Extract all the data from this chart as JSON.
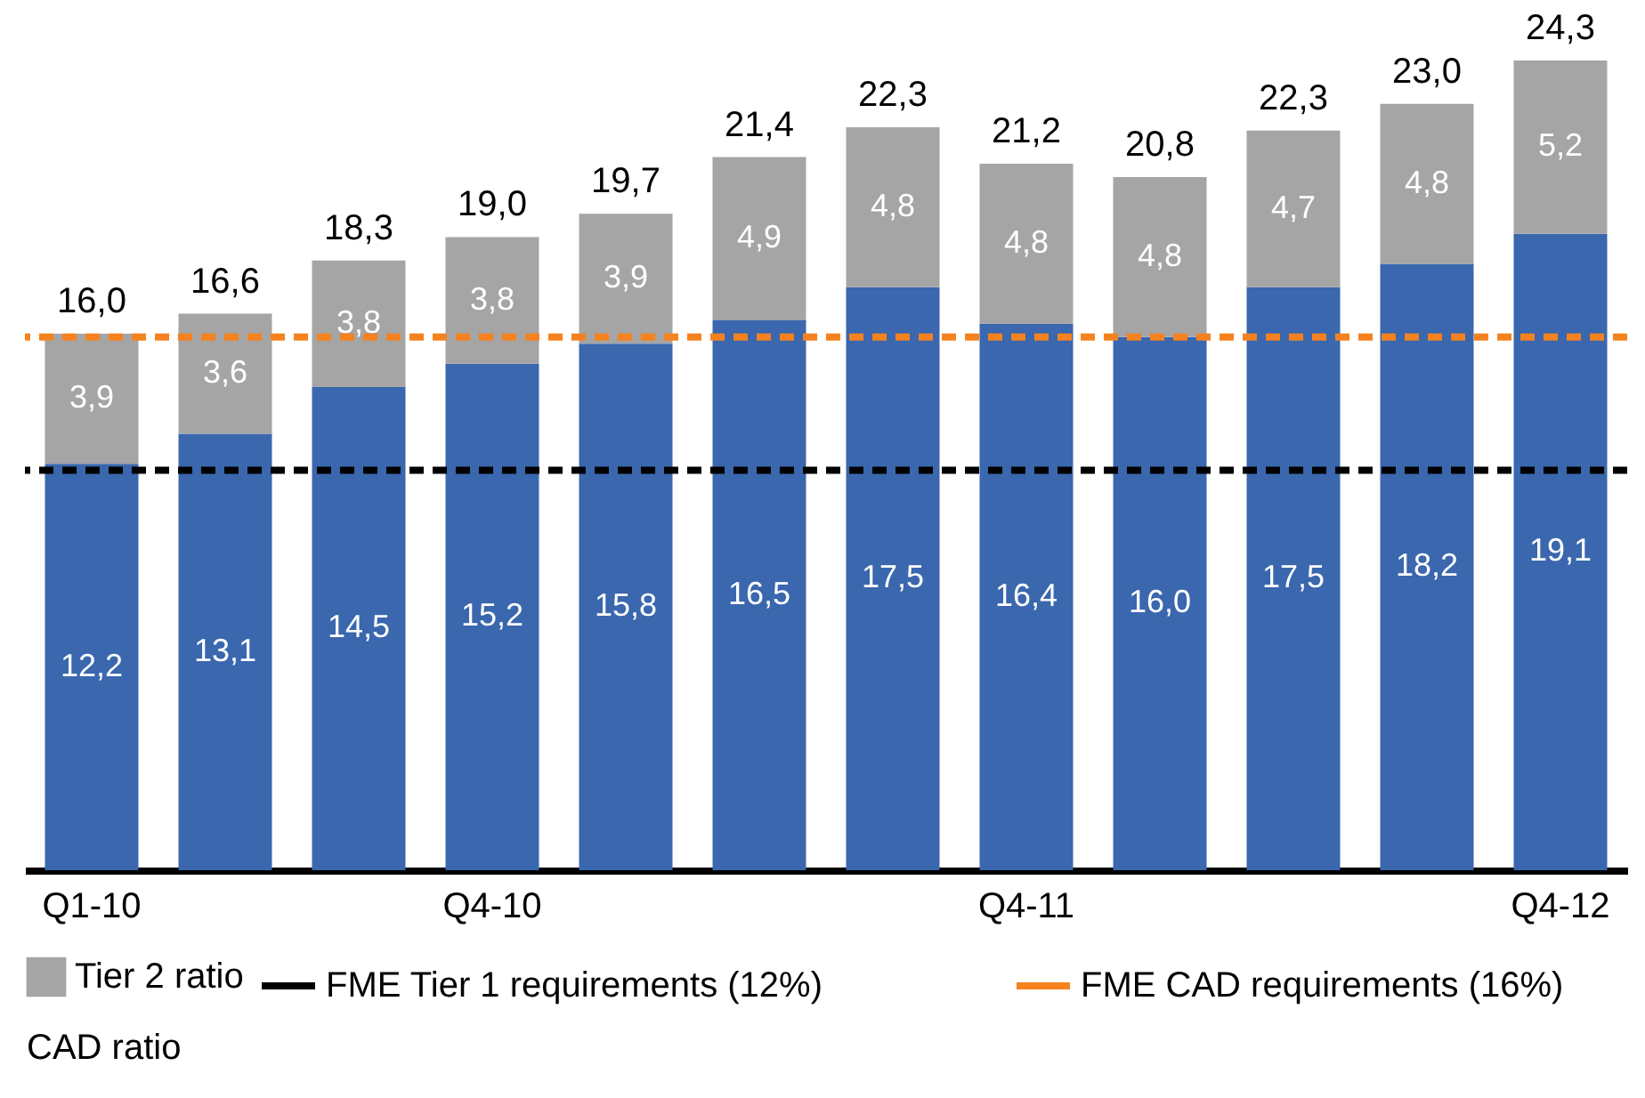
{
  "chart_data": {
    "type": "bar",
    "stacked": true,
    "categories": [
      "Q1-10",
      null,
      null,
      "Q4-10",
      null,
      null,
      null,
      "Q4-11",
      null,
      null,
      null,
      "Q4-12"
    ],
    "series": [
      {
        "color": "#3a67ae",
        "values": [
          12.2,
          13.1,
          14.5,
          15.2,
          15.8,
          16.5,
          17.5,
          16.4,
          16.0,
          17.5,
          18.2,
          19.1
        ],
        "value_labels": [
          "12,2",
          "13,1",
          "14,5",
          "15,2",
          "15,8",
          "16,5",
          "17,5",
          "16,4",
          "16,0",
          "17,5",
          "18,2",
          "19,1"
        ]
      },
      {
        "name": "Tier 2 ratio",
        "color": "#a5a5a5",
        "values": [
          3.9,
          3.6,
          3.8,
          3.8,
          3.9,
          4.9,
          4.8,
          4.8,
          4.8,
          4.7,
          4.8,
          5.2
        ],
        "value_labels": [
          "3,9",
          "3,6",
          "3,8",
          "3,8",
          "3,9",
          "4,9",
          "4,8",
          "4,8",
          "4,8",
          "4,7",
          "4,8",
          "5,2"
        ]
      }
    ],
    "totals": [
      "16,0",
      "16,6",
      "18,3",
      "19,0",
      "19,7",
      "21,4",
      "22,3",
      "21,2",
      "20,8",
      "22,3",
      "23,0",
      "24,3"
    ],
    "ref_lines": [
      {
        "axis": "y",
        "value": 12,
        "label": "FME Tier 1 requirements (12%)",
        "color": "#000000",
        "line_style": "dashed"
      },
      {
        "axis": "y",
        "value": 16,
        "label": "FME CAD requirements (16%)",
        "color": "#f5821f",
        "line_style": "dashed"
      }
    ],
    "annotations": [
      "CAD ratio"
    ],
    "legend": "bottom"
  }
}
